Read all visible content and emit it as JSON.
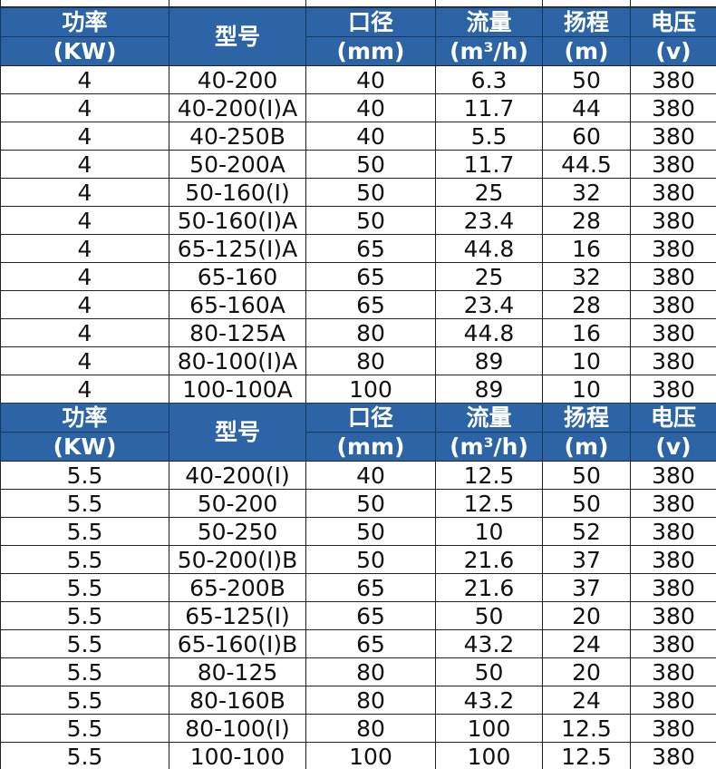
{
  "tables": [
    {
      "header": [
        [
          "功率",
          "(KW)"
        ],
        [
          "型号"
        ],
        [
          "口径",
          "(mm)"
        ],
        [
          "流量",
          "(m³/h)"
        ],
        [
          "扬程",
          "(m)"
        ],
        [
          "电压",
          "(v)"
        ]
      ],
      "rows": [
        [
          "4",
          "40-200",
          "40",
          "6.3",
          "50",
          "380"
        ],
        [
          "4",
          "40-200(I)A",
          "40",
          "11.7",
          "44",
          "380"
        ],
        [
          "4",
          "40-250B",
          "40",
          "5.5",
          "60",
          "380"
        ],
        [
          "4",
          "50-200A",
          "50",
          "11.7",
          "44.5",
          "380"
        ],
        [
          "4",
          "50-160(I)",
          "50",
          "25",
          "32",
          "380"
        ],
        [
          "4",
          "50-160(I)A",
          "50",
          "23.4",
          "28",
          "380"
        ],
        [
          "4",
          "65-125(I)A",
          "65",
          "44.8",
          "16",
          "380"
        ],
        [
          "4",
          "65-160",
          "65",
          "25",
          "32",
          "380"
        ],
        [
          "4",
          "65-160A",
          "65",
          "23.4",
          "28",
          "380"
        ],
        [
          "4",
          "80-125A",
          "80",
          "44.8",
          "16",
          "380"
        ],
        [
          "4",
          "80-100(I)A",
          "80",
          "89",
          "10",
          "380"
        ],
        [
          "4",
          "100-100A",
          "100",
          "89",
          "10",
          "380"
        ]
      ]
    },
    {
      "header": [
        [
          "功率",
          "(KW)"
        ],
        [
          "型号"
        ],
        [
          "口径",
          "(mm)"
        ],
        [
          "流量",
          "(m³/h)"
        ],
        [
          "扬程",
          "(m)"
        ],
        [
          "电压",
          "(v)"
        ]
      ],
      "rows": [
        [
          "5.5",
          "40-200(I)",
          "40",
          "12.5",
          "50",
          "380"
        ],
        [
          "5.5",
          "50-200",
          "50",
          "12.5",
          "50",
          "380"
        ],
        [
          "5.5",
          "50-250",
          "50",
          "10",
          "52",
          "380"
        ],
        [
          "5.5",
          "50-200(I)B",
          "50",
          "21.6",
          "37",
          "380"
        ],
        [
          "5.5",
          "65-200B",
          "65",
          "21.6",
          "37",
          "380"
        ],
        [
          "5.5",
          "65-125(I)",
          "65",
          "50",
          "20",
          "380"
        ],
        [
          "5.5",
          "65-160(I)B",
          "65",
          "43.2",
          "24",
          "380"
        ],
        [
          "5.5",
          "80-125",
          "80",
          "50",
          "20",
          "380"
        ],
        [
          "5.5",
          "80-160B",
          "80",
          "43.2",
          "24",
          "380"
        ],
        [
          "5.5",
          "80-100(I)",
          "80",
          "100",
          "12.5",
          "380"
        ],
        [
          "5.5",
          "100-100",
          "100",
          "100",
          "12.5",
          "380"
        ]
      ]
    }
  ]
}
